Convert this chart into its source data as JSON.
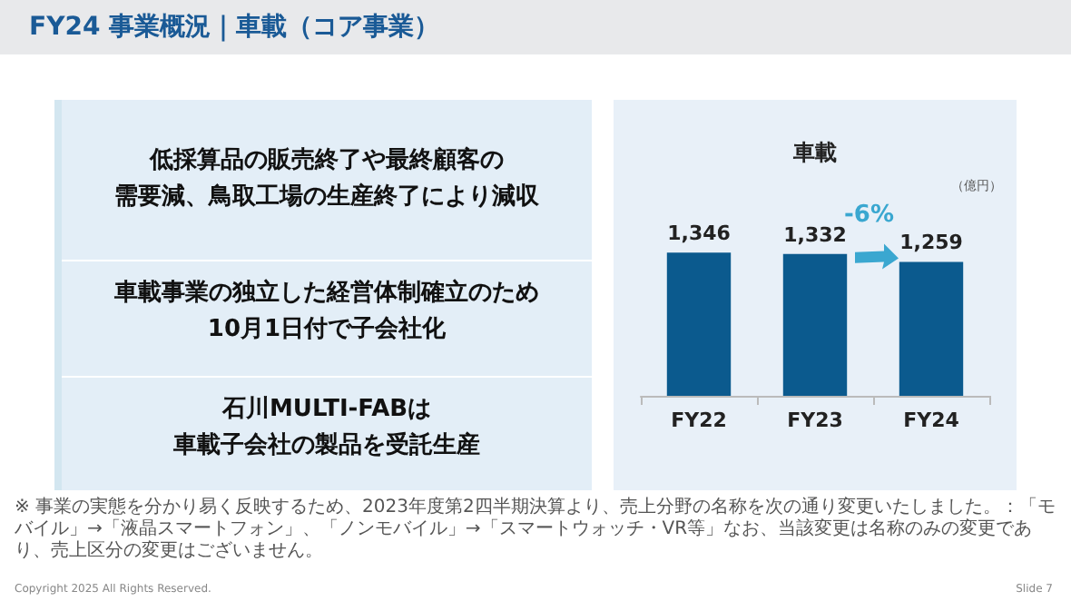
{
  "chart_data": {
    "type": "bar",
    "title": "車載",
    "ylabel": "（億円）",
    "categories": [
      "FY22",
      "FY23",
      "FY24"
    ],
    "values": [
      1346,
      1332,
      1259
    ],
    "value_labels": [
      "1,346",
      "1,332",
      "1,259"
    ],
    "color": "#0b5a8e",
    "annotations": [
      "FY24 事業概況｜車載（コア事業）",
      "低採算品の販売終了や最終顧客の",
      "需要減、鳥取工場の生産終了により減収",
      "車載事業の独立した経営体制確立のため",
      "10月1日付で子会社化",
      "石川MULTI-FABは",
      "車載子会社の製品を受託生産",
      "-6%",
      "※ 事業の実態を分かり易く反映するため、2023年度第2四半期決算より、売上分野の名称を次の通り変更いたしました。：「モバイル」→「液晶スマートフォン」、「ノンモバイル」→「スマートウォッチ・VR等」なお、当該変更は名称のみの変更であり、売上区分の変更はございません。",
      "Copyright 2025 All Rights Reserved.",
      "Slide 7"
    ]
  }
}
